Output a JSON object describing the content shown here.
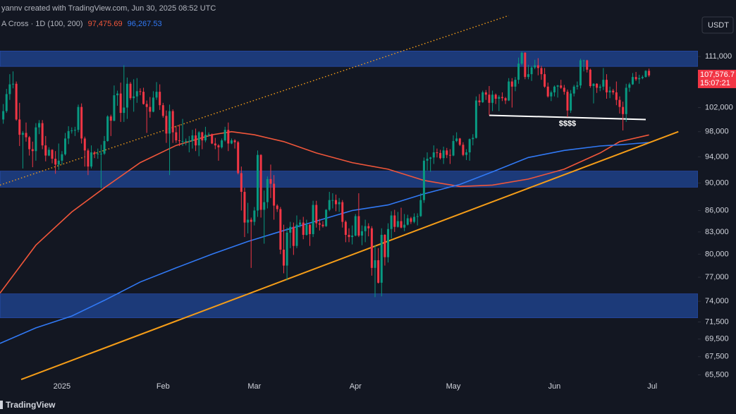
{
  "chart_data": {
    "type": "candlestick",
    "credit": "yannv created with TradingView.com, Jun 30, 2025 08:52 UTC",
    "indicator": "A Cross · 1D (100, 200)",
    "currency": "USDT",
    "brand": "TradingView",
    "log_scale": true,
    "grid": false,
    "background": "#131722",
    "xlim": [
      1,
      215
    ],
    "xticks": [
      {
        "value": 20,
        "label": "2025"
      },
      {
        "value": 51,
        "label": "Feb"
      },
      {
        "value": 79,
        "label": "Mar"
      },
      {
        "value": 110,
        "label": "Apr"
      },
      {
        "value": 140,
        "label": "May"
      },
      {
        "value": 171,
        "label": "Jun"
      },
      {
        "value": 201,
        "label": "Jul"
      }
    ],
    "ylim": [
      64850,
      121900
    ],
    "yticks": [
      {
        "value": 111000,
        "label": "111,000"
      },
      {
        "value": 102000,
        "label": "102,000"
      },
      {
        "value": 98000,
        "label": "98,000"
      },
      {
        "value": 94000,
        "label": "94,000"
      },
      {
        "value": 90000,
        "label": "90,000"
      },
      {
        "value": 86000,
        "label": "86,000"
      },
      {
        "value": 83000,
        "label": "83,000"
      },
      {
        "value": 80000,
        "label": "80,000"
      },
      {
        "value": 77000,
        "label": "77,000"
      },
      {
        "value": 74000,
        "label": "74,000"
      },
      {
        "value": 71500,
        "label": "71,500"
      },
      {
        "value": 69500,
        "label": "69,500"
      },
      {
        "value": 67500,
        "label": "67,500"
      },
      {
        "value": 65500,
        "label": "65,500"
      }
    ],
    "candles": {
      "up_color": "#089981",
      "down_color": "#f23645",
      "x": [
        2,
        3,
        4,
        5,
        6,
        7,
        8,
        9,
        10,
        11,
        12,
        13,
        14,
        15,
        16,
        17,
        18,
        19,
        20,
        21,
        22,
        23,
        24,
        25,
        26,
        27,
        28,
        29,
        30,
        31,
        32,
        33,
        34,
        35,
        36,
        37,
        38,
        39,
        40,
        41,
        42,
        43,
        44,
        45,
        46,
        47,
        48,
        49,
        50,
        51,
        52,
        53,
        54,
        55,
        56,
        57,
        58,
        59,
        60,
        61,
        62,
        63,
        64,
        65,
        66,
        67,
        68,
        69,
        70,
        71,
        72,
        73,
        74,
        75,
        76,
        77,
        78,
        79,
        80,
        81,
        82,
        83,
        84,
        85,
        86,
        87,
        88,
        89,
        90,
        91,
        92,
        93,
        94,
        95,
        96,
        97,
        98,
        99,
        100,
        101,
        102,
        103,
        104,
        105,
        106,
        107,
        108,
        109,
        110,
        111,
        112,
        113,
        114,
        115,
        116,
        117,
        118,
        119,
        120,
        121,
        122,
        123,
        124,
        125,
        126,
        127,
        128,
        129,
        130,
        131,
        132,
        133,
        134,
        135,
        136,
        137,
        138,
        139,
        140,
        141,
        142,
        143,
        144,
        145,
        146,
        147,
        148,
        149,
        150,
        151,
        152,
        153,
        154,
        155,
        156,
        157,
        158,
        159,
        160,
        161,
        162,
        163,
        164,
        165,
        166,
        167,
        168,
        169,
        170,
        171,
        172,
        173,
        174,
        175,
        176,
        177,
        178,
        179,
        180,
        181,
        182,
        183,
        184,
        185,
        186,
        187,
        188,
        189,
        190,
        191,
        192,
        193,
        194,
        195,
        196,
        197,
        198,
        199,
        200
      ],
      "open": [
        100000,
        101400,
        104300,
        106000,
        106100,
        100000,
        97500,
        97800,
        97100,
        95200,
        94900,
        98700,
        99400,
        95800,
        94200,
        95100,
        93700,
        92800,
        93400,
        94400,
        96900,
        98100,
        98200,
        98300,
        102100,
        96900,
        95000,
        92500,
        94700,
        94500,
        94500,
        94500,
        96500,
        100500,
        99800,
        104100,
        104400,
        101100,
        102000,
        106100,
        103600,
        103900,
        104800,
        104700,
        102600,
        102100,
        101300,
        103700,
        104700,
        102400,
        100600,
        97700,
        101400,
        97900,
        96600,
        96500,
        96500,
        96500,
        96500,
        97400,
        95800,
        97900,
        96600,
        97500,
        97600,
        96100,
        95800,
        95500,
        96600,
        98300,
        96100,
        96600,
        96300,
        91500,
        88700,
        84300,
        84700,
        84400,
        86000,
        94300,
        86100,
        87200,
        90600,
        89900,
        86700,
        86200,
        80600,
        78500,
        82900,
        83700,
        81100,
        84000,
        84300,
        82600,
        84000,
        82700,
        86800,
        84200,
        84000,
        83800,
        86100,
        87500,
        87500,
        86900,
        87200,
        84400,
        82600,
        82300,
        82500,
        85200,
        82500,
        83100,
        83800,
        83500,
        78200,
        79200,
        76300,
        82600,
        79600,
        83400,
        85300,
        83700,
        84500,
        83600,
        84000,
        84900,
        84400,
        85100,
        85200,
        87500,
        93400,
        93700,
        93900,
        94700,
        94600,
        93800,
        95000,
        94300,
        94200,
        96500,
        96900,
        95900,
        94300,
        94700,
        96800,
        97000,
        103200,
        102900,
        104600,
        104200,
        102800,
        104200,
        103500,
        103800,
        103600,
        103200,
        106500,
        105600,
        106800,
        109700,
        111700,
        107300,
        107800,
        109000,
        109400,
        108900,
        107800,
        105600,
        103900,
        104600,
        105600,
        105800,
        105400,
        104700,
        101500,
        104400,
        105600,
        105800,
        110300,
        110300,
        108600,
        105700,
        106100,
        105400,
        105600,
        106800,
        104600,
        104900,
        104600,
        103300,
        102100,
        100900,
        105400,
        106000,
        107300,
        106900,
        107100,
        107300,
        108400
      ],
      "high": [
        102600,
        105200,
        107800,
        108300,
        106500,
        102800,
        98100,
        99500,
        97300,
        96400,
        99400,
        99900,
        99900,
        97300,
        95500,
        95200,
        94900,
        96100,
        94900,
        97800,
        98900,
        98700,
        98800,
        102500,
        102700,
        97200,
        95300,
        95800,
        94900,
        95300,
        95900,
        97300,
        100700,
        100800,
        105800,
        104900,
        106300,
        109400,
        107200,
        106400,
        106900,
        107100,
        105300,
        105400,
        103200,
        103800,
        104800,
        106400,
        106000,
        102800,
        101500,
        102500,
        101700,
        99000,
        99200,
        100100,
        96900,
        97300,
        98300,
        98500,
        98100,
        98000,
        98800,
        97900,
        97700,
        97000,
        96000,
        96900,
        98800,
        99500,
        96900,
        96800,
        96500,
        92500,
        89300,
        87100,
        85000,
        86500,
        95000,
        94400,
        88900,
        91000,
        92800,
        91200,
        86900,
        86500,
        84000,
        83600,
        84400,
        84300,
        85300,
        84700,
        85100,
        84700,
        84100,
        87400,
        87400,
        84800,
        84500,
        86200,
        88700,
        88500,
        88300,
        87800,
        87500,
        84600,
        83500,
        83900,
        85500,
        88500,
        83900,
        84700,
        84200,
        83800,
        81200,
        80800,
        83500,
        82700,
        84200,
        85900,
        86100,
        85800,
        86400,
        85500,
        85400,
        85100,
        85600,
        85600,
        88500,
        93900,
        94700,
        94000,
        95800,
        95300,
        95100,
        95600,
        95400,
        95200,
        97400,
        97900,
        97000,
        96300,
        95200,
        96900,
        97600,
        103900,
        104300,
        104900,
        105000,
        105700,
        104900,
        104400,
        104100,
        104600,
        103800,
        107100,
        107100,
        107300,
        110800,
        111900,
        111800,
        109500,
        109300,
        110400,
        110700,
        109300,
        108900,
        106300,
        104900,
        105800,
        105900,
        106800,
        105900,
        105100,
        105000,
        105900,
        106500,
        110600,
        110400,
        110400,
        108800,
        106200,
        106200,
        106000,
        108900,
        107800,
        105600,
        105200,
        106500,
        103900,
        103000,
        106100,
        106300,
        108000,
        108200,
        107700,
        107600,
        108500,
        108800
      ],
      "low": [
        99300,
        101100,
        103300,
        105300,
        99800,
        95700,
        92200,
        96400,
        94200,
        92400,
        93400,
        97600,
        95200,
        93300,
        94100,
        93000,
        91400,
        92000,
        92800,
        94200,
        96000,
        97700,
        97300,
        97900,
        96100,
        92500,
        91200,
        92200,
        93800,
        93700,
        89200,
        94300,
        96400,
        97300,
        99700,
        102300,
        99600,
        99600,
        100100,
        103300,
        101300,
        102800,
        104100,
        102500,
        97800,
        100300,
        101200,
        103300,
        101600,
        100300,
        96200,
        91200,
        96200,
        96200,
        95700,
        95700,
        95800,
        94700,
        95300,
        94900,
        94100,
        95200,
        96300,
        97200,
        96000,
        95200,
        93400,
        95300,
        96400,
        94900,
        96000,
        95300,
        91300,
        86000,
        82300,
        82800,
        78200,
        83900,
        85100,
        85000,
        81400,
        86300,
        87800,
        84700,
        85800,
        80000,
        77500,
        76600,
        80800,
        79900,
        80800,
        83600,
        82000,
        82500,
        81100,
        82300,
        83600,
        83200,
        83600,
        83700,
        85900,
        86300,
        85900,
        85800,
        83600,
        81600,
        81600,
        81300,
        82400,
        82300,
        81200,
        81600,
        82400,
        77200,
        74500,
        76200,
        74600,
        78500,
        78900,
        82100,
        83000,
        83600,
        83500,
        83100,
        83900,
        84100,
        84200,
        83900,
        85100,
        87100,
        91900,
        91700,
        92900,
        93900,
        93600,
        92900,
        93800,
        92900,
        94100,
        96300,
        95700,
        94100,
        93500,
        93400,
        95800,
        96900,
        102300,
        102800,
        103300,
        100700,
        101400,
        102600,
        101400,
        103100,
        102600,
        103100,
        102000,
        104800,
        106100,
        109400,
        106900,
        106900,
        106600,
        108700,
        107600,
        106800,
        105400,
        103700,
        103100,
        103900,
        103700,
        105200,
        104200,
        100400,
        101100,
        103900,
        105100,
        105300,
        108300,
        108100,
        105400,
        102700,
        104500,
        104800,
        105000,
        103500,
        103600,
        104200,
        102400,
        101000,
        98200,
        99600,
        104700,
        105900,
        106600,
        106100,
        106900,
        107200,
        107300
      ],
      "close": [
        101400,
        104300,
        106000,
        106100,
        100000,
        97500,
        97800,
        97100,
        95200,
        94900,
        98700,
        99400,
        95800,
        94200,
        95100,
        93700,
        92800,
        93400,
        94400,
        96900,
        98100,
        98200,
        98300,
        102100,
        96900,
        95000,
        92500,
        94700,
        94500,
        94500,
        94500,
        96500,
        100500,
        99800,
        104100,
        104400,
        101100,
        102000,
        106100,
        103600,
        103900,
        104800,
        104700,
        102600,
        102100,
        101300,
        103700,
        104700,
        102400,
        100600,
        97700,
        101400,
        97900,
        96600,
        96500,
        96500,
        96500,
        96500,
        97400,
        95800,
        97900,
        96600,
        97500,
        97600,
        96100,
        95800,
        95500,
        96600,
        98300,
        96100,
        96600,
        96300,
        91500,
        88700,
        84300,
        84700,
        84400,
        86000,
        94300,
        86100,
        87200,
        90600,
        89900,
        86700,
        86200,
        80600,
        78500,
        82900,
        83700,
        81100,
        84000,
        84300,
        82600,
        84000,
        82700,
        86800,
        84200,
        84000,
        83800,
        86100,
        87500,
        87500,
        86900,
        87200,
        84400,
        82600,
        82300,
        82500,
        85200,
        82500,
        83100,
        83800,
        83500,
        78200,
        79200,
        76300,
        82600,
        79600,
        83400,
        85300,
        83700,
        84500,
        83600,
        84000,
        84900,
        84400,
        85100,
        85200,
        87500,
        93400,
        93700,
        93900,
        94700,
        94600,
        93800,
        95000,
        94300,
        94200,
        96500,
        96900,
        95900,
        94300,
        94700,
        96800,
        97000,
        103200,
        102900,
        104600,
        104200,
        102800,
        104200,
        103500,
        103800,
        103600,
        103200,
        106500,
        105600,
        106800,
        109700,
        111700,
        107300,
        107800,
        109000,
        109400,
        108900,
        107800,
        105600,
        103900,
        104600,
        105600,
        105800,
        105400,
        104700,
        101500,
        104400,
        105600,
        105800,
        110300,
        110300,
        108600,
        105700,
        106100,
        105400,
        105600,
        106800,
        104600,
        104900,
        104600,
        103300,
        102100,
        100900,
        105400,
        106000,
        107300,
        106900,
        107100,
        107300,
        108400,
        107576.7
      ]
    },
    "ma": [
      {
        "color": "#f0563a",
        "legend_value": "97,475.69",
        "x": [
          1,
          12,
          23,
          33,
          44,
          55,
          66,
          72,
          79,
          88,
          98,
          109,
          120,
          131,
          142,
          152,
          163,
          174,
          185,
          191,
          200
        ],
        "values": [
          75000,
          81200,
          85800,
          89300,
          93100,
          95800,
          97500,
          98000,
          97500,
          96400,
          94600,
          93100,
          92100,
          90400,
          89500,
          89700,
          90600,
          92100,
          94600,
          96400,
          97475.69
        ]
      },
      {
        "color": "#3179f5",
        "legend_value": "96,267.53",
        "x": [
          1,
          12,
          23,
          33,
          44,
          55,
          66,
          77,
          88,
          98,
          109,
          120,
          131,
          142,
          152,
          163,
          174,
          185,
          191,
          200
        ],
        "values": [
          69000,
          70800,
          72200,
          74100,
          76400,
          78200,
          80000,
          81700,
          83200,
          84500,
          86000,
          86800,
          88400,
          89800,
          91700,
          93900,
          95000,
          95700,
          95900,
          96267.53
        ]
      }
    ],
    "zones": [
      {
        "low": 109200,
        "high": 112000
      },
      {
        "low": 89400,
        "high": 91800
      },
      {
        "low": 72000,
        "high": 74900
      }
    ],
    "trendlines": [
      {
        "x": [
          7.5,
          209
        ],
        "values": [
          65000,
          98000
        ],
        "color": "#f59d18",
        "style": "solid"
      },
      {
        "x": [
          1,
          157
        ],
        "values": [
          89700,
          118800
        ],
        "color": "#f59d18",
        "style": "dotted"
      },
      {
        "x": [
          151,
          199
        ],
        "values": [
          100700,
          100000
        ],
        "color": "#ffffff",
        "style": "solid"
      }
    ],
    "annotations": [
      {
        "text": "$$$$",
        "x": 175,
        "y": 99300
      }
    ],
    "price_tag": {
      "value": 107576.7,
      "label": "107,576.7",
      "countdown": "15:07:21",
      "color": "#f23645"
    }
  }
}
